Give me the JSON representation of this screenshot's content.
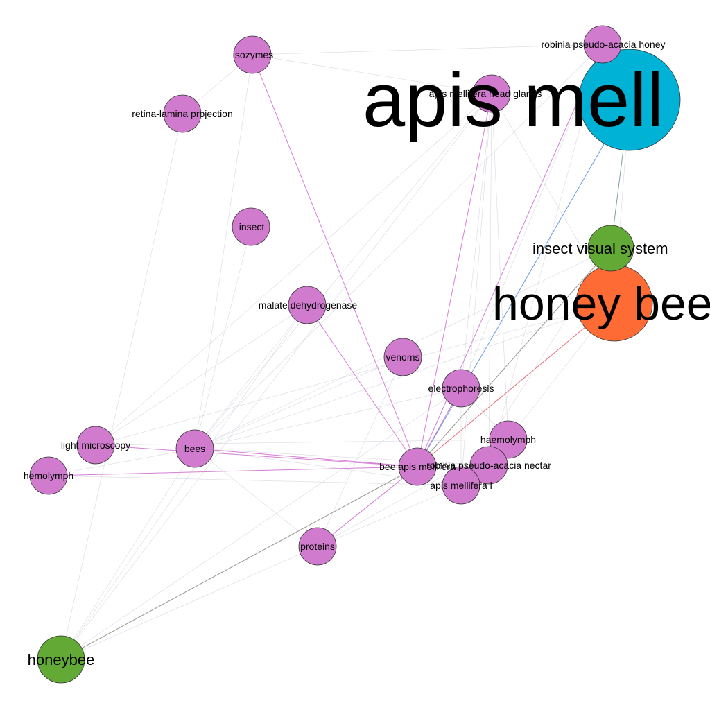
{
  "graph": {
    "colors": {
      "purple_node": "#d07bce",
      "blue_node": "#00b2d6",
      "orange_node": "#ff6b35",
      "green_node": "#62aa35",
      "node_stroke": "#333333",
      "edge_purple": "#d06fd0",
      "edge_light": "#c8c8d4",
      "edge_blue": "#5a8fd6",
      "edge_gray": "#8a8a80",
      "edge_red": "#e0606e",
      "edge_teal": "#6e9a9a"
    },
    "nodes": [
      {
        "id": "apis_mell",
        "label": "apis mell",
        "color": "blue_node"
      },
      {
        "id": "honey_bee",
        "label": "honey bee",
        "color": "orange_node"
      },
      {
        "id": "insect_visual_system",
        "label": "insect visual system",
        "color": "green_node"
      },
      {
        "id": "honeybee",
        "label": "honeybee",
        "color": "green_node"
      },
      {
        "id": "robinia_honey",
        "label": "robinia pseudo-acacia honey",
        "color": "purple_node"
      },
      {
        "id": "isozymes",
        "label": "isozymes",
        "color": "purple_node"
      },
      {
        "id": "apis_head_glands",
        "label": "apis mellifera head glands",
        "color": "purple_node"
      },
      {
        "id": "retina",
        "label": "retina-lamina projection",
        "color": "purple_node"
      },
      {
        "id": "insect",
        "label": "insect",
        "color": "purple_node"
      },
      {
        "id": "malate",
        "label": "malate dehydrogenase",
        "color": "purple_node"
      },
      {
        "id": "venoms",
        "label": "venoms",
        "color": "purple_node"
      },
      {
        "id": "electrophoresis",
        "label": "electrophoresis",
        "color": "purple_node"
      },
      {
        "id": "light_microscopy",
        "label": "light microscopy",
        "color": "purple_node"
      },
      {
        "id": "bees",
        "label": "bees",
        "color": "purple_node"
      },
      {
        "id": "haemolymph",
        "label": "haemolymph",
        "color": "purple_node"
      },
      {
        "id": "hemolymph",
        "label": "hemolymph",
        "color": "purple_node"
      },
      {
        "id": "bee_apis",
        "label": "bee apis mellifera",
        "color": "purple_node"
      },
      {
        "id": "robinia_nectar",
        "label": "robinia pseudo-acacia nectar",
        "color": "purple_node"
      },
      {
        "id": "apis_mellifera_l",
        "label": "apis mellifera l",
        "color": "purple_node"
      },
      {
        "id": "proteins",
        "label": "proteins",
        "color": "purple_node"
      }
    ],
    "edges": [
      {
        "source": "bee_apis",
        "target": "isozymes",
        "color": "edge_purple"
      },
      {
        "source": "bee_apis",
        "target": "malate",
        "color": "edge_purple"
      },
      {
        "source": "bee_apis",
        "target": "bees",
        "color": "edge_purple"
      },
      {
        "source": "bee_apis",
        "target": "light_microscopy",
        "color": "edge_purple"
      },
      {
        "source": "bee_apis",
        "target": "hemolymph",
        "color": "edge_purple"
      },
      {
        "source": "bee_apis",
        "target": "proteins",
        "color": "edge_purple"
      },
      {
        "source": "bee_apis",
        "target": "apis_head_glands",
        "color": "edge_purple"
      },
      {
        "source": "bee_apis",
        "target": "robinia_honey",
        "color": "edge_purple"
      },
      {
        "source": "bee_apis",
        "target": "electrophoresis",
        "color": "edge_purple"
      },
      {
        "source": "bee_apis",
        "target": "apis_mell",
        "color": "edge_blue"
      },
      {
        "source": "bee_apis",
        "target": "honey_bee",
        "color": "edge_red"
      },
      {
        "source": "bee_apis",
        "target": "insect_visual_system",
        "color": "edge_gray"
      },
      {
        "source": "honeybee",
        "target": "bee_apis",
        "color": "edge_gray"
      },
      {
        "source": "apis_mell",
        "target": "insect_visual_system",
        "color": "edge_teal"
      },
      {
        "source": "apis_mell",
        "target": "honey_bee",
        "color": "edge_light"
      },
      {
        "source": "isozymes",
        "target": "apis_head_glands",
        "color": "edge_light"
      },
      {
        "source": "isozymes",
        "target": "robinia_honey",
        "color": "edge_light"
      },
      {
        "source": "isozymes",
        "target": "bees",
        "color": "edge_light"
      },
      {
        "source": "apis_head_glands",
        "target": "electrophoresis",
        "color": "edge_light"
      },
      {
        "source": "apis_head_glands",
        "target": "bees",
        "color": "edge_light"
      },
      {
        "source": "apis_head_glands",
        "target": "haemolymph",
        "color": "edge_light"
      },
      {
        "source": "apis_head_glands",
        "target": "apis_mellifera_l",
        "color": "edge_light"
      },
      {
        "source": "apis_head_glands",
        "target": "robinia_nectar",
        "color": "edge_light"
      },
      {
        "source": "apis_head_glands",
        "target": "light_microscopy",
        "color": "edge_light"
      },
      {
        "source": "apis_head_glands",
        "target": "honey_bee",
        "color": "edge_light"
      },
      {
        "source": "robinia_honey",
        "target": "bees",
        "color": "edge_light"
      },
      {
        "source": "robinia_honey",
        "target": "electrophoresis",
        "color": "edge_light"
      },
      {
        "source": "robinia_honey",
        "target": "robinia_nectar",
        "color": "edge_light"
      },
      {
        "source": "malate",
        "target": "bees",
        "color": "edge_light"
      },
      {
        "source": "malate",
        "target": "light_microscopy",
        "color": "edge_light"
      },
      {
        "source": "insect",
        "target": "bees",
        "color": "edge_light"
      },
      {
        "source": "venoms",
        "target": "proteins",
        "color": "edge_light"
      },
      {
        "source": "venoms",
        "target": "bees",
        "color": "edge_light"
      },
      {
        "source": "electrophoresis",
        "target": "bees",
        "color": "edge_light"
      },
      {
        "source": "electrophoresis",
        "target": "apis_mellifera_l",
        "color": "edge_light"
      },
      {
        "source": "electrophoresis",
        "target": "haemolymph",
        "color": "edge_light"
      },
      {
        "source": "electrophoresis",
        "target": "honeybee",
        "color": "edge_light"
      },
      {
        "source": "bees",
        "target": "apis_mellifera_l",
        "color": "edge_light"
      },
      {
        "source": "bees",
        "target": "robinia_nectar",
        "color": "edge_light"
      },
      {
        "source": "bees",
        "target": "proteins",
        "color": "edge_light"
      },
      {
        "source": "bees",
        "target": "hemolymph",
        "color": "edge_light"
      },
      {
        "source": "hemolymph",
        "target": "apis_mellifera_l",
        "color": "edge_light"
      },
      {
        "source": "light_microscopy",
        "target": "haemolymph",
        "color": "edge_light"
      },
      {
        "source": "haemolymph",
        "target": "proteins",
        "color": "edge_light"
      },
      {
        "source": "apis_mellifera_l",
        "target": "proteins",
        "color": "edge_light"
      },
      {
        "source": "honeybee",
        "target": "malate",
        "color": "edge_light"
      },
      {
        "source": "honeybee",
        "target": "bees",
        "color": "edge_light"
      },
      {
        "source": "honeybee",
        "target": "proteins",
        "color": "edge_light"
      },
      {
        "source": "honeybee",
        "target": "apis_head_glands",
        "color": "edge_light"
      },
      {
        "source": "honeybee",
        "target": "retina",
        "color": "edge_light"
      },
      {
        "source": "insect_visual_system",
        "target": "bees",
        "color": "edge_light"
      },
      {
        "source": "insect_visual_system",
        "target": "apis_mellifera_l",
        "color": "edge_light"
      },
      {
        "source": "honey_bee",
        "target": "bees",
        "color": "edge_light"
      },
      {
        "source": "honey_bee",
        "target": "haemolymph",
        "color": "edge_light"
      },
      {
        "source": "honey_bee",
        "target": "light_microscopy",
        "color": "edge_light"
      },
      {
        "source": "retina",
        "target": "isozymes",
        "color": "edge_light"
      }
    ]
  }
}
